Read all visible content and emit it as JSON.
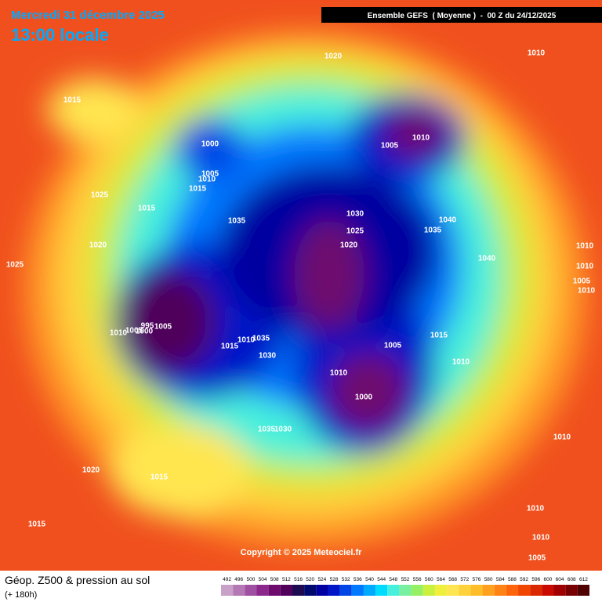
{
  "header": {
    "date": "Mercredi 31 décembre 2025",
    "time": "13:00 locale",
    "model": "Ensemble GEFS  ( Moyenne )  -  00 Z du 24/12/2025"
  },
  "footer": {
    "title": "Géop. Z500 & pression au sol",
    "lead": "(+ 180h)",
    "copyright": "Copyright © 2025 Meteociel.fr"
  },
  "scale": {
    "labels": [
      492,
      496,
      500,
      504,
      508,
      512,
      516,
      520,
      524,
      528,
      532,
      536,
      540,
      544,
      548,
      552,
      556,
      560,
      564,
      568,
      572,
      576,
      580,
      584,
      588,
      592,
      596,
      600,
      604,
      608,
      612
    ],
    "colors": [
      "#c8a0c8",
      "#b478b4",
      "#a050a0",
      "#8c288c",
      "#6e0a6e",
      "#50005a",
      "#1e0a50",
      "#000a6e",
      "#0000a0",
      "#0014c8",
      "#0046e6",
      "#0078ff",
      "#00aaff",
      "#00dcff",
      "#46f0dc",
      "#78f0a0",
      "#96f064",
      "#c8f03c",
      "#f0f03c",
      "#ffe650",
      "#ffd23c",
      "#ffbe28",
      "#ffa01e",
      "#ff8214",
      "#ff640a",
      "#f04600",
      "#dc2800",
      "#c80a00",
      "#a00000",
      "#780000",
      "#500000"
    ]
  },
  "isobar_labels": [
    1020,
    1010,
    1015,
    1000,
    1005,
    1010,
    1005,
    1010,
    1015,
    1025,
    1015,
    1035,
    1030,
    1040,
    1025,
    1035,
    1020,
    1020,
    1040,
    1010,
    1025,
    1010,
    1005,
    1010,
    1010,
    1005,
    995,
    1000,
    1005,
    1015,
    1005,
    1015,
    1010,
    1035,
    1030,
    1010,
    1010,
    1000,
    1035,
    1030,
    1010,
    1020,
    1015,
    1015,
    1010,
    1010,
    1005
  ]
}
